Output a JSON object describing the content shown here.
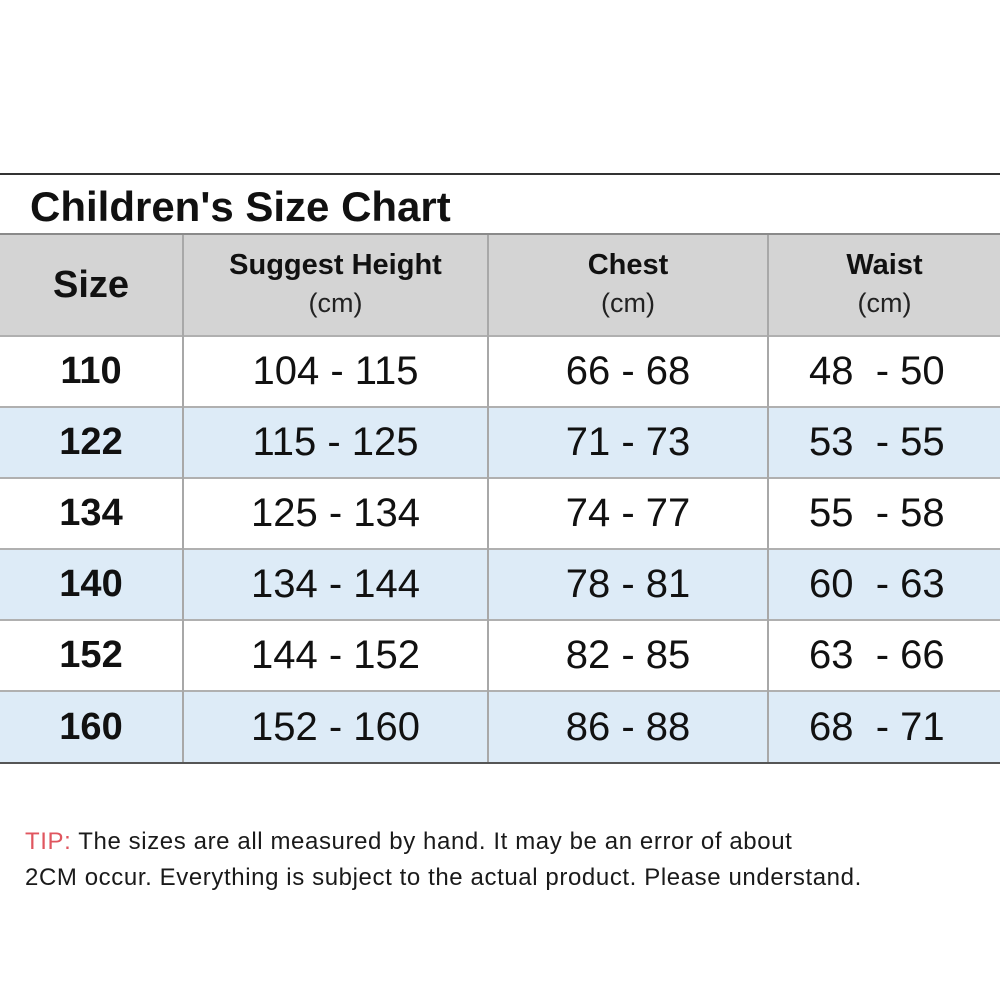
{
  "title": "Children's Size Chart",
  "headers": {
    "size": "Size",
    "height": {
      "label": "Suggest Height",
      "unit": "(cm)"
    },
    "chest": {
      "label": "Chest",
      "unit": "(cm)"
    },
    "waist": {
      "label": "Waist",
      "unit": "(cm)"
    }
  },
  "rows": [
    {
      "size": "110",
      "height": "104 - 115",
      "chest": "66 - 68",
      "waist": "48  - 50"
    },
    {
      "size": "122",
      "height": "115 - 125",
      "chest": "71 - 73",
      "waist": "53  - 55"
    },
    {
      "size": "134",
      "height": "125 - 134",
      "chest": "74 - 77",
      "waist": "55  - 58"
    },
    {
      "size": "140",
      "height": "134 - 144",
      "chest": "78 - 81",
      "waist": "60  - 63"
    },
    {
      "size": "152",
      "height": "144 - 152",
      "chest": "82 - 85",
      "waist": "63  - 66"
    },
    {
      "size": "160",
      "height": "152 - 160",
      "chest": "86 - 88",
      "waist": "68  - 71"
    }
  ],
  "tip": {
    "label": "TIP:",
    "line1": "The sizes are all measured by hand. It may be an error of about",
    "line2": "2CM occur. Everything is subject to the actual product. Please understand."
  },
  "colors": {
    "header_bg": "#d4d4d4",
    "stripe_bg": "#ddebf7",
    "tip_label": "#e0565f"
  }
}
